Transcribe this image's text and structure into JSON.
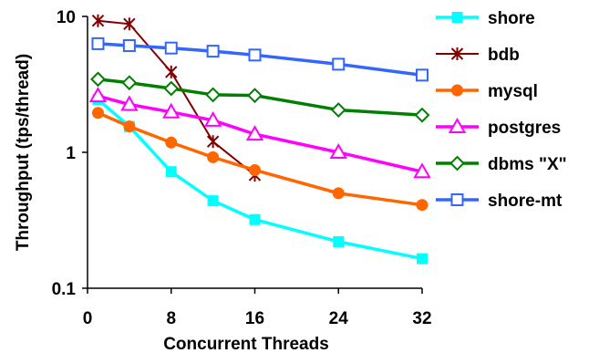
{
  "chart_data": {
    "type": "line",
    "title": "",
    "xlabel": "Concurrent Threads",
    "ylabel": "Throughput (tps/thread)",
    "xlim": [
      0,
      32
    ],
    "ylim": [
      0.1,
      10
    ],
    "y_scale": "log",
    "grid": false,
    "legend_position": "right",
    "x_ticks": [
      0,
      8,
      16,
      24,
      32
    ],
    "y_ticks": [
      0.1,
      1,
      10
    ],
    "x_tick_labels": [
      "0",
      "8",
      "16",
      "24",
      "32"
    ],
    "y_tick_labels": [
      "0.1",
      "1",
      "10"
    ],
    "series": [
      {
        "name": "shore",
        "color": "#00ffff",
        "marker": "filled-square",
        "x": [
          1,
          4,
          8,
          12,
          16,
          24,
          32
        ],
        "y": [
          2.45,
          1.55,
          0.72,
          0.44,
          0.32,
          0.22,
          0.165
        ]
      },
      {
        "name": "bdb",
        "color": "#800000",
        "marker": "asterisk",
        "x": [
          1,
          4,
          8,
          12,
          16
        ],
        "y": [
          9.3,
          8.8,
          3.9,
          1.2,
          0.68
        ]
      },
      {
        "name": "mysql",
        "color": "#ff6600",
        "marker": "filled-circle",
        "x": [
          1,
          4,
          8,
          12,
          16,
          24,
          32
        ],
        "y": [
          1.95,
          1.55,
          1.18,
          0.92,
          0.74,
          0.5,
          0.41
        ]
      },
      {
        "name": "postgres",
        "color": "#ff00ff",
        "marker": "open-triangle",
        "x": [
          1,
          4,
          8,
          12,
          16,
          24,
          32
        ],
        "y": [
          2.6,
          2.25,
          1.98,
          1.72,
          1.36,
          1.0,
          0.72
        ]
      },
      {
        "name": "dbms \"X\"",
        "color": "#008000",
        "marker": "open-diamond",
        "x": [
          1,
          4,
          8,
          12,
          16,
          24,
          32
        ],
        "y": [
          3.45,
          3.25,
          2.95,
          2.65,
          2.62,
          2.05,
          1.88
        ]
      },
      {
        "name": "shore-mt",
        "color": "#3366ff",
        "marker": "open-square",
        "x": [
          1,
          4,
          8,
          12,
          16,
          24,
          32
        ],
        "y": [
          6.3,
          6.1,
          5.85,
          5.55,
          5.2,
          4.45,
          3.7
        ]
      }
    ]
  }
}
